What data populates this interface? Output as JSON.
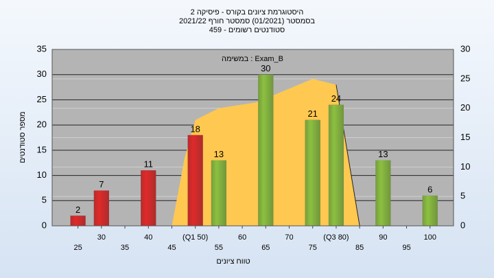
{
  "chart_data": {
    "type": "bar",
    "title": [
      "היסטוגרמת ציונים בקורס - פיסיקה 2",
      "בסמסטר  (01/2021)  סמסטר חורף 2021/22",
      "סטודנטים רשומים - 459"
    ],
    "annotation": "במשימה : Exam_B",
    "x_label": "טווח ציונים",
    "y_label": "מספר סטודנטים",
    "bars": {
      "x": [
        25,
        30,
        40,
        50,
        55,
        65,
        75,
        80,
        90,
        100
      ],
      "values": [
        2,
        7,
        11,
        18,
        13,
        30,
        21,
        24,
        13,
        6
      ],
      "colors": [
        "#e02a2a",
        "#e02a2a",
        "#e02a2a",
        "#e02a2a",
        "#8cc040",
        "#8cc040",
        "#8cc040",
        "#8cc040",
        "#8cc040",
        "#8cc040"
      ]
    },
    "area": {
      "x": [
        45,
        47.7,
        50,
        55,
        63,
        75,
        80,
        85
      ],
      "values": [
        0,
        11.5,
        18,
        20,
        21,
        25,
        24,
        0
      ],
      "axis": "y2",
      "color": "#ffc850"
    },
    "xlim": [
      19.5,
      105
    ],
    "xticks": [
      25,
      30,
      35,
      40,
      45,
      {
        "value": 50,
        "label": "(Q1 50)"
      },
      55,
      60,
      65,
      70,
      75,
      {
        "value": 80,
        "label": "(Q3 80)"
      },
      85,
      90,
      95,
      100
    ],
    "ylim": [
      0,
      35
    ],
    "yticks": [
      0,
      5,
      10,
      15,
      20,
      25,
      30,
      35
    ],
    "y2lim": [
      0,
      30
    ],
    "y2ticks": [
      0,
      5,
      10,
      15,
      20,
      25,
      30
    ],
    "grid": true
  }
}
